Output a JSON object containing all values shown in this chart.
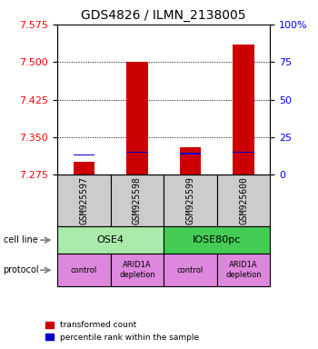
{
  "title": "GDS4826 / ILMN_2138005",
  "samples": [
    "GSM925597",
    "GSM925598",
    "GSM925599",
    "GSM925600"
  ],
  "transformed_counts": [
    7.3,
    7.5,
    7.33,
    7.535
  ],
  "percentile_ranks": [
    13,
    15,
    14,
    15
  ],
  "y_min": 7.275,
  "y_max": 7.575,
  "y_ticks": [
    7.275,
    7.35,
    7.425,
    7.5,
    7.575
  ],
  "y_right_ticks": [
    0,
    25,
    50,
    75,
    100
  ],
  "bar_color_red": "#cc0000",
  "bar_color_blue": "#0000cc",
  "cell_line_groups": [
    {
      "label": "OSE4",
      "start": 0,
      "end": 2,
      "color": "#aaeaaa"
    },
    {
      "label": "IOSE80pc",
      "start": 2,
      "end": 4,
      "color": "#44cc55"
    }
  ],
  "protocol_color": "#dd88dd",
  "protocol_texts": [
    "control",
    "ARID1A\ndepletion",
    "control",
    "ARID1A\ndepletion"
  ],
  "sample_box_color": "#cccccc",
  "legend_red_label": "transformed count",
  "legend_blue_label": "percentile rank within the sample",
  "cell_line_label": "cell line",
  "protocol_label": "protocol",
  "bar_width": 0.4,
  "base_value": 7.275
}
